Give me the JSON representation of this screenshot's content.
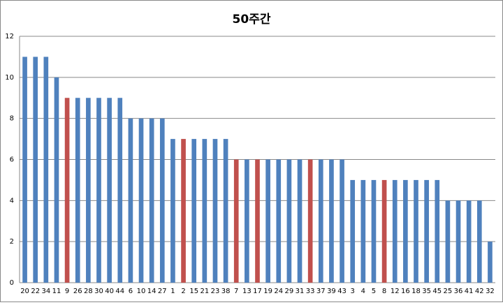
{
  "chart_data": {
    "type": "bar",
    "title": "50주간",
    "categories": [
      "20",
      "22",
      "34",
      "11",
      "9",
      "26",
      "28",
      "30",
      "40",
      "44",
      "6",
      "10",
      "14",
      "27",
      "1",
      "2",
      "15",
      "21",
      "23",
      "38",
      "7",
      "13",
      "17",
      "19",
      "24",
      "29",
      "31",
      "33",
      "37",
      "39",
      "43",
      "3",
      "4",
      "5",
      "8",
      "12",
      "16",
      "18",
      "35",
      "45",
      "25",
      "36",
      "41",
      "42",
      "32"
    ],
    "values": [
      11,
      11,
      11,
      10,
      9,
      9,
      9,
      9,
      9,
      9,
      8,
      8,
      8,
      8,
      7,
      7,
      7,
      7,
      7,
      7,
      6,
      6,
      6,
      6,
      6,
      6,
      6,
      6,
      6,
      6,
      6,
      5,
      5,
      5,
      5,
      5,
      5,
      5,
      5,
      5,
      4,
      4,
      4,
      4,
      2
    ],
    "colors": [
      "#4f81bd",
      "#4f81bd",
      "#4f81bd",
      "#4f81bd",
      "#c0504d",
      "#4f81bd",
      "#4f81bd",
      "#4f81bd",
      "#4f81bd",
      "#4f81bd",
      "#4f81bd",
      "#4f81bd",
      "#4f81bd",
      "#4f81bd",
      "#4f81bd",
      "#c0504d",
      "#4f81bd",
      "#4f81bd",
      "#4f81bd",
      "#4f81bd",
      "#c0504d",
      "#4f81bd",
      "#c0504d",
      "#4f81bd",
      "#4f81bd",
      "#4f81bd",
      "#4f81bd",
      "#c0504d",
      "#4f81bd",
      "#4f81bd",
      "#4f81bd",
      "#4f81bd",
      "#4f81bd",
      "#4f81bd",
      "#c0504d",
      "#4f81bd",
      "#4f81bd",
      "#4f81bd",
      "#4f81bd",
      "#4f81bd",
      "#4f81bd",
      "#4f81bd",
      "#4f81bd",
      "#4f81bd",
      "#4f81bd"
    ],
    "ylim": [
      0,
      12
    ],
    "yticks": [
      0,
      2,
      4,
      6,
      8,
      10,
      12
    ],
    "grid": true
  }
}
